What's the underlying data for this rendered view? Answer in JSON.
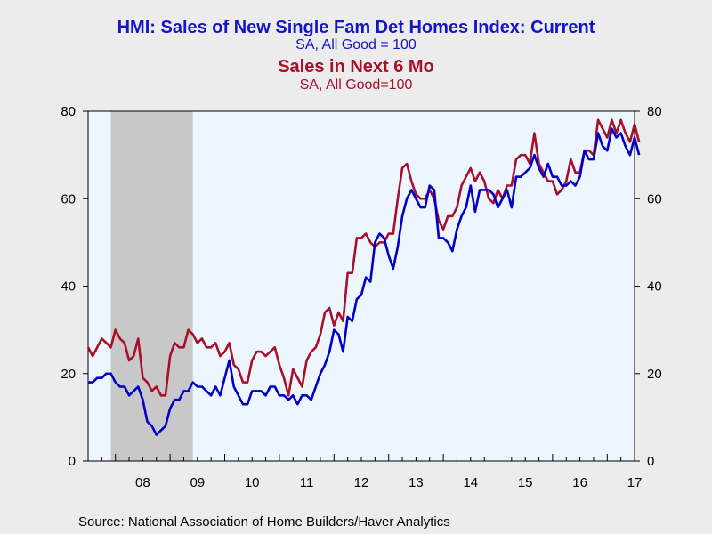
{
  "titles": {
    "title1": "HMI: Sales of New Single Fam Det Homes Index: Current",
    "sub1": "SA, All Good = 100",
    "title2": "Sales in Next 6 Mo",
    "sub2": "SA, All Good=100"
  },
  "source": "Source:  National Association of Home Builders/Haver Analytics",
  "colors": {
    "current": "#0000c8",
    "next6": "#a8102a",
    "plot_bg": "#edf5ff",
    "recession": "#c8c8c8"
  },
  "chart_data": {
    "type": "line",
    "frequency": "monthly",
    "x_start": "2007-07",
    "x_end": "2017-07",
    "x_tick_labels": [
      "08",
      "09",
      "10",
      "11",
      "12",
      "13",
      "14",
      "15",
      "16",
      "17"
    ],
    "ylim": [
      0,
      80
    ],
    "y_ticks": [
      0,
      20,
      40,
      60,
      80
    ],
    "right_axis_ylim": [
      0,
      80
    ],
    "recession_shading": {
      "start": "2007-12",
      "end": "2009-06"
    },
    "series": [
      {
        "name": "HMI: Sales of New Single Fam Det Homes Index: Current",
        "values": [
          18,
          18,
          19,
          19,
          20,
          20,
          18,
          17,
          17,
          15,
          16,
          17,
          14,
          9,
          8,
          6,
          7,
          8,
          12,
          14,
          14,
          16,
          16,
          18,
          17,
          17,
          16,
          15,
          17,
          15,
          19,
          23,
          17,
          15,
          13,
          13,
          16,
          16,
          16,
          15,
          17,
          17,
          15,
          15,
          14,
          15,
          13,
          15,
          15,
          14,
          17,
          20,
          22,
          25,
          30,
          29,
          25,
          33,
          32,
          37,
          38,
          42,
          41,
          50,
          52,
          51,
          47,
          44,
          49,
          56,
          60,
          62,
          60,
          58,
          58,
          63,
          62,
          51,
          51,
          50,
          48,
          53,
          56,
          58,
          63,
          57,
          62,
          62,
          62,
          61,
          58,
          60,
          62,
          58,
          65,
          65,
          66,
          67,
          70,
          67,
          65,
          68,
          65,
          65,
          63,
          63,
          64,
          63,
          65,
          71,
          69,
          69,
          75,
          72,
          71,
          76,
          74,
          75,
          72,
          70,
          74,
          70
        ]
      },
      {
        "name": "Sales in Next 6 Mo",
        "values": [
          26,
          24,
          26,
          28,
          27,
          26,
          30,
          28,
          27,
          23,
          24,
          28,
          19,
          18,
          16,
          17,
          15,
          15,
          24,
          27,
          26,
          26,
          30,
          29,
          27,
          28,
          26,
          26,
          27,
          24,
          25,
          27,
          22,
          21,
          18,
          18,
          23,
          25,
          25,
          24,
          25,
          26,
          22,
          19,
          15,
          21,
          19,
          17,
          23,
          25,
          26,
          29,
          34,
          35,
          31,
          34,
          32,
          43,
          43,
          51,
          51,
          52,
          50,
          49,
          50,
          50,
          52,
          52,
          60,
          67,
          68,
          64,
          61,
          60,
          60,
          62,
          60,
          55,
          53,
          56,
          56,
          58,
          63,
          65,
          67,
          64,
          66,
          64,
          60,
          59,
          62,
          60,
          63,
          63,
          69,
          70,
          70,
          68,
          75,
          68,
          66,
          64,
          64,
          61,
          62,
          64,
          69,
          66,
          66,
          71,
          71,
          70,
          78,
          76,
          74,
          78,
          75,
          78,
          75,
          73,
          77,
          73
        ]
      }
    ]
  }
}
